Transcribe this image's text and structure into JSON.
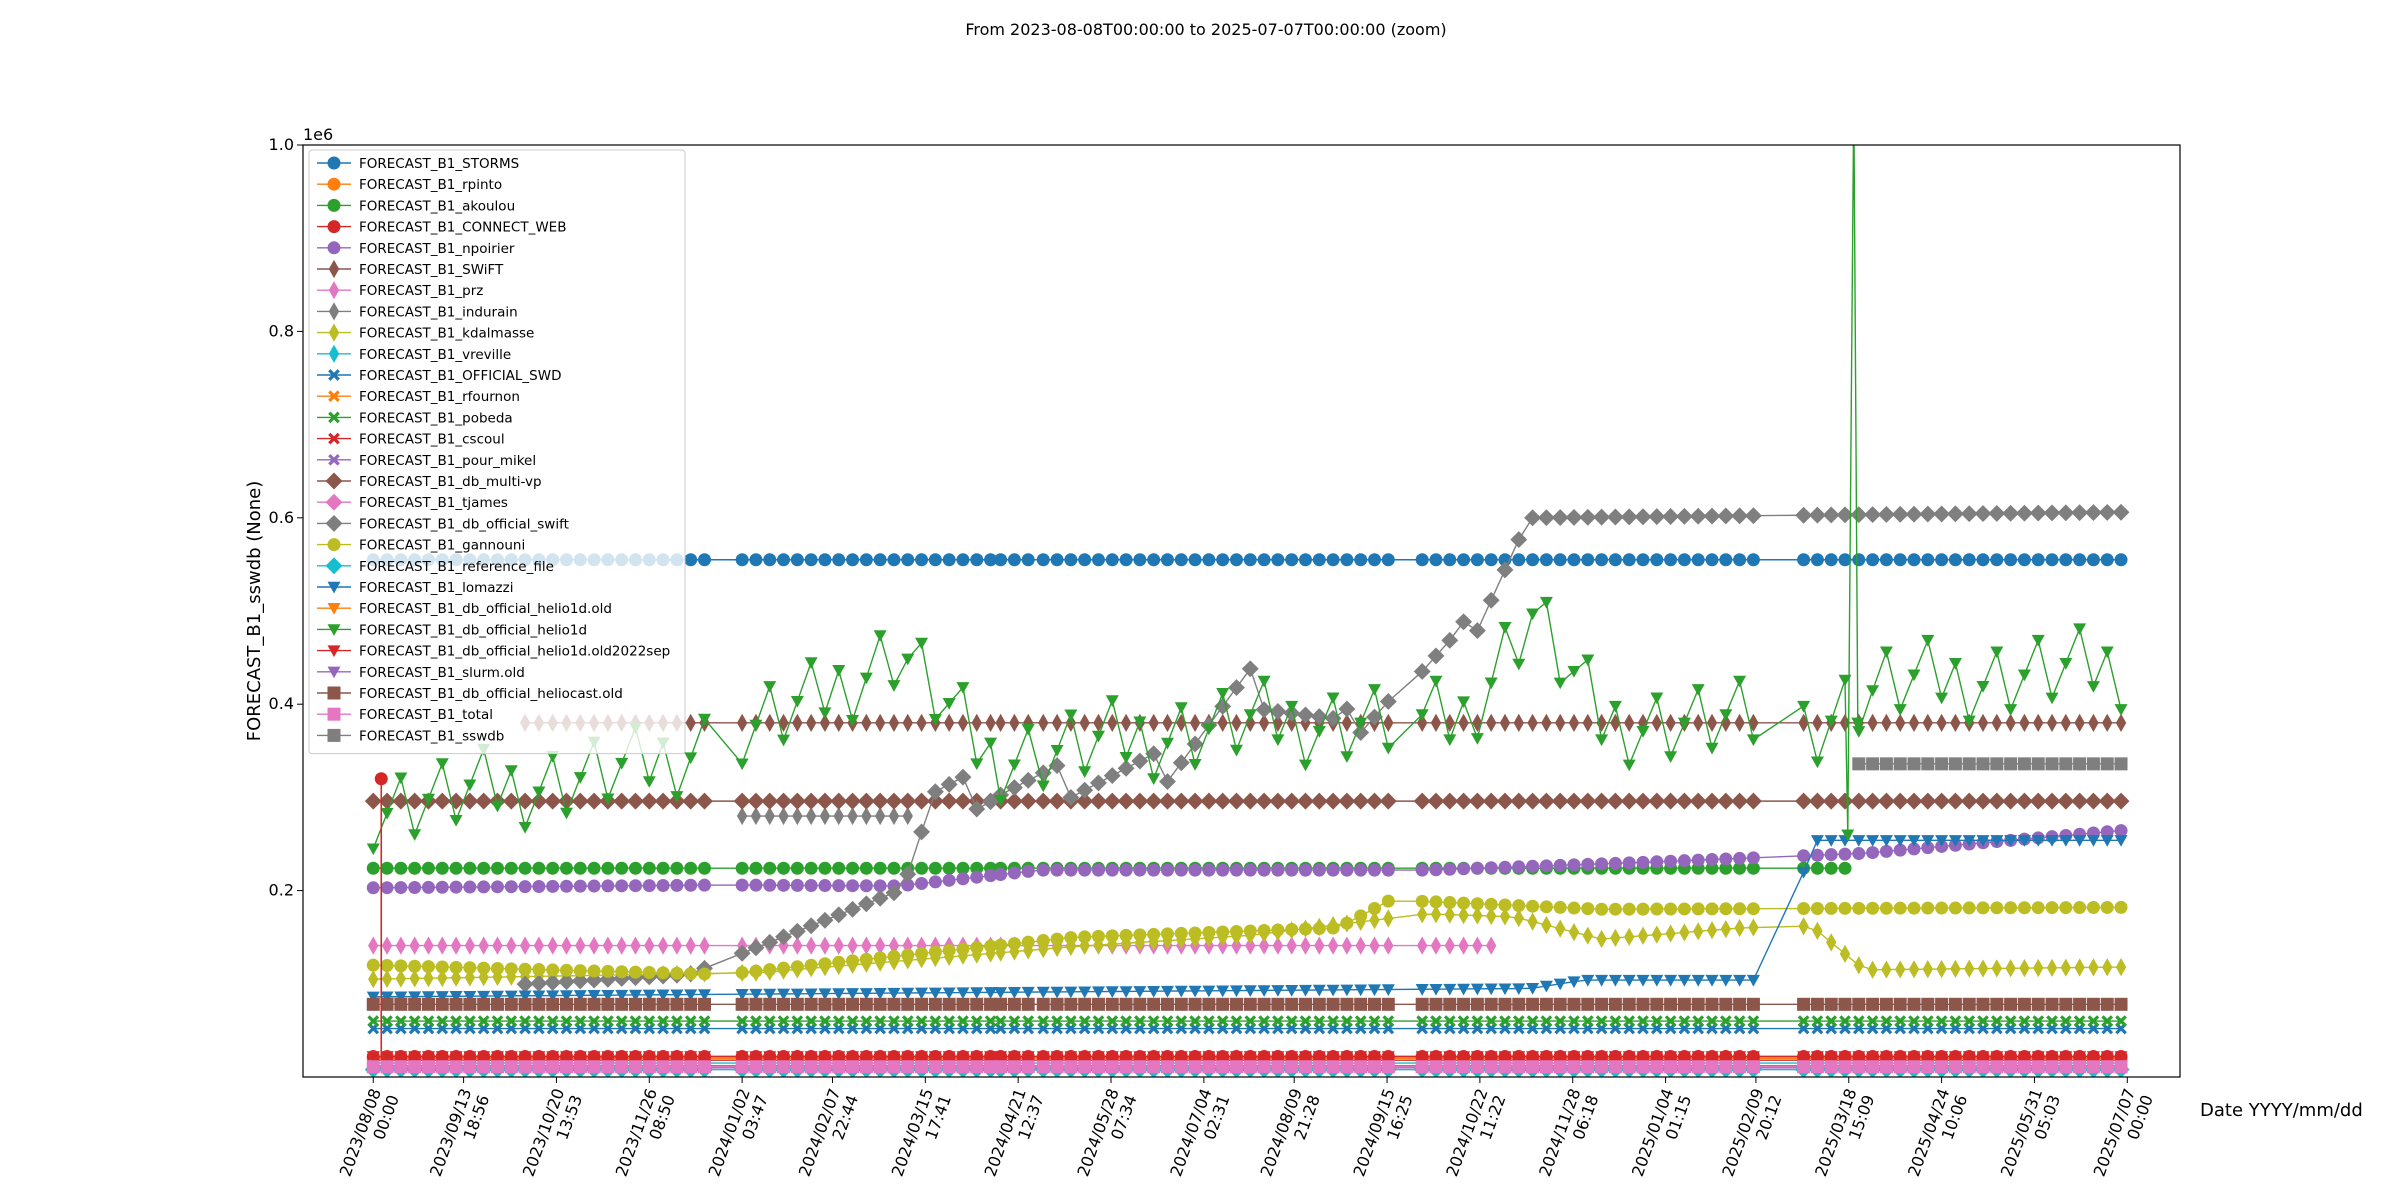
{
  "chart_data": {
    "type": "line",
    "title": "From 2023-08-08T00:00:00 to 2025-07-07T00:00:00 (zoom)",
    "xlabel": "Date YYYY/mm/dd",
    "ylabel": "FORECAST_B1_sswdb (None)",
    "y_scale_label": "1e6",
    "xlim": [
      "2023-07-11",
      "2025-07-28"
    ],
    "ylim": [
      0,
      1000000
    ],
    "y_ticks": [
      {
        "value": 200000,
        "label": "0.2"
      },
      {
        "value": 400000,
        "label": "0.4"
      },
      {
        "value": 600000,
        "label": "0.6"
      },
      {
        "value": 800000,
        "label": "0.8"
      },
      {
        "value": 1000000,
        "label": "1.0"
      }
    ],
    "x_ticks": [
      {
        "date": "2023-08-08",
        "label": "2023/08/08\n00:00"
      },
      {
        "date": "2023-09-13",
        "label": "2023/09/13\n18:56"
      },
      {
        "date": "2023-10-20",
        "label": "2023/10/20\n13:53"
      },
      {
        "date": "2023-11-26",
        "label": "2023/11/26\n08:50"
      },
      {
        "date": "2024-01-02",
        "label": "2024/01/02\n03:47"
      },
      {
        "date": "2024-02-07",
        "label": "2024/02/07\n22:44"
      },
      {
        "date": "2024-03-15",
        "label": "2024/03/15\n17:41"
      },
      {
        "date": "2024-04-21",
        "label": "2024/04/21\n12:37"
      },
      {
        "date": "2024-05-28",
        "label": "2024/05/28\n07:34"
      },
      {
        "date": "2024-07-04",
        "label": "2024/07/04\n02:31"
      },
      {
        "date": "2024-08-09",
        "label": "2024/08/09\n21:28"
      },
      {
        "date": "2024-09-15",
        "label": "2024/09/15\n16:25"
      },
      {
        "date": "2024-10-22",
        "label": "2024/10/22\n11:22"
      },
      {
        "date": "2024-11-28",
        "label": "2024/11/28\n06:18"
      },
      {
        "date": "2025-01-04",
        "label": "2025/01/04\n01:15"
      },
      {
        "date": "2025-02-09",
        "label": "2025/02/09\n20:12"
      },
      {
        "date": "2025-03-18",
        "label": "2025/03/18\n15:09"
      },
      {
        "date": "2025-04-24",
        "label": "2025/04/24\n10:06"
      },
      {
        "date": "2025-05-31",
        "label": "2025/05/31\n05:03"
      },
      {
        "date": "2025-07-07",
        "label": "2025/07/07\n00:00"
      }
    ],
    "date_segments": [
      [
        "2023-08-08",
        "2023-12-23"
      ],
      [
        "2024-01-02",
        "2024-04-10"
      ],
      [
        "2024-04-14",
        "2024-04-26"
      ],
      [
        "2024-05-01",
        "2024-09-20"
      ],
      [
        "2024-09-29",
        "2025-02-11"
      ],
      [
        "2025-02-28",
        "2025-07-07"
      ]
    ],
    "grid": false,
    "legend_position": "upper left",
    "series": [
      {
        "name": "FORECAST_B1_STORMS",
        "color": "#1f77b4",
        "marker": "circle",
        "profile": [
          [
            0,
            555000
          ]
        ]
      },
      {
        "name": "FORECAST_B1_rpinto",
        "color": "#ff7f0e",
        "marker": "circle",
        "profile": [
          [
            0,
            20000
          ]
        ]
      },
      {
        "name": "FORECAST_B1_akoulou",
        "color": "#2ca02c",
        "marker": "circle",
        "profile": [
          [
            0,
            224000
          ]
        ],
        "end": "2025-03-20"
      },
      {
        "name": "FORECAST_B1_CONNECT_WEB",
        "color": "#d62728",
        "marker": "circle",
        "profile": [
          [
            0,
            22000
          ]
        ]
      },
      {
        "name": "FORECAST_B1_npoirier",
        "color": "#9467bd",
        "marker": "circle",
        "profile": [
          [
            0,
            203000
          ],
          [
            0.2,
            206000
          ],
          [
            0.3,
            205000
          ],
          [
            0.38,
            222000
          ],
          [
            0.6,
            222000
          ],
          [
            0.72,
            230000
          ],
          [
            0.85,
            240000
          ],
          [
            1,
            265000
          ]
        ]
      },
      {
        "name": "FORECAST_B1_SWiFT",
        "color": "#8c564b",
        "marker": "thin_diamond",
        "profile": [
          [
            0,
            380000
          ]
        ],
        "start": "2023-10-05"
      },
      {
        "name": "FORECAST_B1_prz",
        "color": "#e377c2",
        "marker": "thin_diamond",
        "profile": [
          [
            0,
            141000
          ]
        ],
        "end": "2024-10-28"
      },
      {
        "name": "FORECAST_B1_indurain",
        "color": "#7f7f7f",
        "marker": "thin_diamond",
        "profile": [
          [
            0,
            280000
          ]
        ],
        "start": "2024-01-02",
        "end": "2024-03-10"
      },
      {
        "name": "FORECAST_B1_kdalmasse",
        "color": "#bcbd22",
        "marker": "thin_diamond",
        "profile": [
          [
            0,
            105000
          ],
          [
            0.22,
            112000
          ],
          [
            0.4,
            140000
          ],
          [
            0.5,
            152000
          ],
          [
            0.6,
            175000
          ],
          [
            0.65,
            172000
          ],
          [
            0.7,
            148000
          ],
          [
            0.78,
            160000
          ],
          [
            0.82,
            162000
          ],
          [
            0.85,
            115000
          ],
          [
            1,
            118000
          ]
        ]
      },
      {
        "name": "FORECAST_B1_vreville",
        "color": "#17becf",
        "marker": "thin_diamond",
        "profile": [
          [
            0,
            15000
          ]
        ]
      },
      {
        "name": "FORECAST_B1_OFFICIAL_SWD",
        "color": "#1f77b4",
        "marker": "x",
        "profile": [
          [
            0,
            52000
          ]
        ]
      },
      {
        "name": "FORECAST_B1_rfournon",
        "color": "#ff7f0e",
        "marker": "x",
        "profile": [
          [
            0,
            12000
          ]
        ]
      },
      {
        "name": "FORECAST_B1_pobeda",
        "color": "#2ca02c",
        "marker": "x",
        "profile": [
          [
            0,
            60000
          ]
        ]
      },
      {
        "name": "FORECAST_B1_cscoul",
        "color": "#d62728",
        "marker": "x",
        "profile": [
          [
            0,
            18000
          ]
        ]
      },
      {
        "name": "FORECAST_B1_pour_mikel",
        "color": "#9467bd",
        "marker": "x",
        "profile": [
          [
            0,
            10000
          ]
        ]
      },
      {
        "name": "FORECAST_B1_db_multi-vp",
        "color": "#8c564b",
        "marker": "diamond",
        "profile": [
          [
            0,
            296000
          ]
        ]
      },
      {
        "name": "FORECAST_B1_tjames",
        "color": "#e377c2",
        "marker": "diamond",
        "profile": [
          [
            0,
            8000
          ]
        ]
      },
      {
        "name": "FORECAST_B1_db_official_swift",
        "color": "#7f7f7f",
        "marker": "diamond",
        "profile": [
          [
            0,
            90000
          ],
          [
            0.18,
            110000
          ],
          [
            0.3,
            200000
          ],
          [
            0.32,
            300000
          ],
          [
            0.45,
            330000
          ],
          [
            0.5,
            420000
          ],
          [
            0.55,
            370000
          ],
          [
            0.62,
            465000
          ],
          [
            0.66,
            600000
          ],
          [
            1,
            606000
          ]
        ],
        "start": "2023-10-05"
      },
      {
        "name": "FORECAST_B1_gannouni",
        "color": "#bcbd22",
        "marker": "circle",
        "profile": [
          [
            0,
            120000
          ],
          [
            0.2,
            110000
          ],
          [
            0.4,
            150000
          ],
          [
            0.55,
            160000
          ],
          [
            0.58,
            190000
          ],
          [
            0.7,
            180000
          ],
          [
            1,
            182000
          ]
        ]
      },
      {
        "name": "FORECAST_B1_reference_file",
        "color": "#17becf",
        "marker": "diamond",
        "profile": [
          [
            0,
            8000
          ]
        ]
      },
      {
        "name": "FORECAST_B1_lomazzi",
        "color": "#1f77b4",
        "marker": "triangle_down",
        "profile": [
          [
            0,
            86000
          ],
          [
            0.66,
            95000
          ],
          [
            0.69,
            104000
          ],
          [
            0.8,
            104000
          ],
          [
            0.82,
            254000
          ],
          [
            1,
            254000
          ]
        ]
      },
      {
        "name": "FORECAST_B1_db_official_helio1d.old",
        "color": "#ff7f0e",
        "marker": "triangle_down",
        "profile": [
          [
            0,
            22000
          ]
        ],
        "end": "2023-08-14"
      },
      {
        "name": "FORECAST_B1_db_official_helio1d",
        "color": "#2ca02c",
        "marker": "triangle_down",
        "profile": [
          [
            0,
            290000
          ],
          [
            0.15,
            330000
          ],
          [
            0.25,
            400000
          ],
          [
            0.3,
            460000
          ],
          [
            0.35,
            340000
          ],
          [
            0.5,
            380000
          ],
          [
            0.62,
            380000
          ],
          [
            0.66,
            500000
          ],
          [
            0.7,
            380000
          ],
          [
            0.82,
            380000
          ],
          [
            0.86,
            420000
          ],
          [
            1,
            440000
          ]
        ],
        "spike": {
          "date": "2025-03-20",
          "value": 1000000
        }
      },
      {
        "name": "FORECAST_B1_db_official_helio1d.old2022sep",
        "color": "#d62728",
        "marker": "triangle_down",
        "profile": [
          [
            0,
            22000
          ]
        ]
      },
      {
        "name": "FORECAST_B1_slurm.old",
        "color": "#9467bd",
        "marker": "triangle_down",
        "profile": [
          [
            0,
            12000
          ]
        ]
      },
      {
        "name": "FORECAST_B1_db_official_heliocast.old",
        "color": "#8c564b",
        "marker": "square",
        "profile": [
          [
            0,
            78000
          ]
        ]
      },
      {
        "name": "FORECAST_B1_total",
        "color": "#e377c2",
        "marker": "square",
        "profile": [
          [
            0,
            11000
          ]
        ]
      },
      {
        "name": "FORECAST_B1_sswdb",
        "color": "#7f7f7f",
        "marker": "square",
        "profile": [
          [
            0,
            336000
          ]
        ],
        "start": "2025-03-20"
      }
    ],
    "connect_web_spike": {
      "date": "2023-08-08",
      "from": 320000,
      "to": 20000
    }
  }
}
